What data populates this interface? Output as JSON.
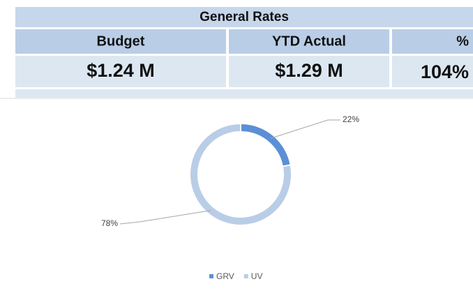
{
  "table": {
    "title": "General Rates",
    "headers": [
      "Budget",
      "YTD Actual",
      "%"
    ],
    "rows": [
      [
        "$1.24 M",
        "$1.29 M",
        "104%"
      ]
    ]
  },
  "chart_data": {
    "type": "pie",
    "donut": true,
    "categories": [
      "GRV",
      "UV"
    ],
    "values": [
      22,
      78
    ],
    "value_labels": [
      "22%",
      "78%"
    ],
    "colors": [
      "#5b8fd6",
      "#b9cde6"
    ],
    "legend": "bottom"
  }
}
